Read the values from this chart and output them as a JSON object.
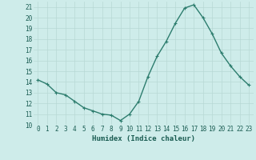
{
  "x": [
    0,
    1,
    2,
    3,
    4,
    5,
    6,
    7,
    8,
    9,
    10,
    11,
    12,
    13,
    14,
    15,
    16,
    17,
    18,
    19,
    20,
    21,
    22,
    23
  ],
  "y": [
    14.2,
    13.8,
    13.0,
    12.8,
    12.2,
    11.6,
    11.3,
    11.0,
    10.9,
    10.4,
    11.0,
    12.2,
    14.5,
    16.4,
    17.8,
    19.5,
    20.9,
    21.2,
    20.0,
    18.5,
    16.7,
    15.5,
    14.5,
    13.7
  ],
  "line_color": "#2d7d6e",
  "marker": "+",
  "marker_color": "#2d7d6e",
  "bg_color": "#ceecea",
  "grid_color": "#b8d8d5",
  "xlabel": "Humidex (Indice chaleur)",
  "xlabel_color": "#1a5c52",
  "xlim": [
    -0.5,
    23.5
  ],
  "ylim": [
    10,
    21.5
  ],
  "yticks": [
    10,
    11,
    12,
    13,
    14,
    15,
    16,
    17,
    18,
    19,
    20,
    21
  ],
  "xticks": [
    0,
    1,
    2,
    3,
    4,
    5,
    6,
    7,
    8,
    9,
    10,
    11,
    12,
    13,
    14,
    15,
    16,
    17,
    18,
    19,
    20,
    21,
    22,
    23
  ],
  "tick_label_color": "#1a5c52",
  "tick_label_fontsize": 5.5,
  "xlabel_fontsize": 6.5,
  "line_width": 1.0,
  "marker_size": 3
}
